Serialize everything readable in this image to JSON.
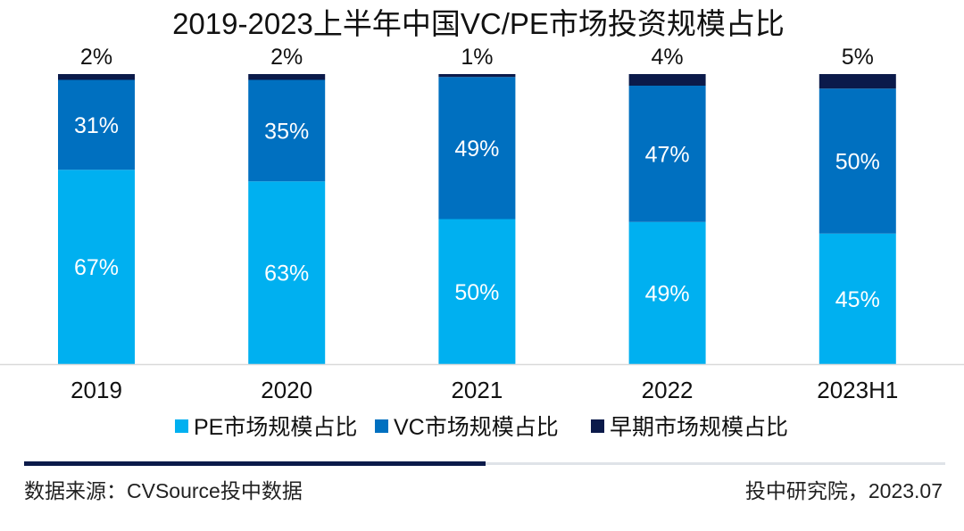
{
  "chart_data": {
    "type": "bar",
    "stacked": true,
    "normalized_percent": true,
    "title": "2019-2023上半年中国VC/PE市场投资规模占比",
    "categories": [
      "2019",
      "2020",
      "2021",
      "2022",
      "2023H1"
    ],
    "series": [
      {
        "name": "PE市场规模占比",
        "color": "#00b0f0",
        "label_color": "#ffffff",
        "values": [
          67,
          63,
          50,
          49,
          45
        ],
        "labels": [
          "67%",
          "63%",
          "50%",
          "49%",
          "45%"
        ]
      },
      {
        "name": "VC市场规模占比",
        "color": "#0070c0",
        "label_color": "#ffffff",
        "values": [
          31,
          35,
          49,
          47,
          50
        ],
        "labels": [
          "31%",
          "35%",
          "49%",
          "47%",
          "50%"
        ]
      },
      {
        "name": "早期市场规模占比",
        "color": "#0b1a4a",
        "label_color": "#111111",
        "values": [
          2,
          2,
          1,
          4,
          5
        ],
        "labels": [
          "2%",
          "2%",
          "1%",
          "4%",
          "5%"
        ]
      }
    ],
    "ylim": [
      0,
      100
    ],
    "grid": false,
    "legend_position": "bottom",
    "xlabel": "",
    "ylabel": ""
  },
  "footer": {
    "source": "数据来源：CVSource投中数据",
    "credit": "投中研究院，2023.07"
  },
  "colors": {
    "pe": "#00b0f0",
    "vc": "#0070c0",
    "early": "#0b1a4a",
    "axis": "#d9d9d9",
    "rule_dark": "#0b1a4a",
    "rule_light": "#dfe3e8"
  }
}
